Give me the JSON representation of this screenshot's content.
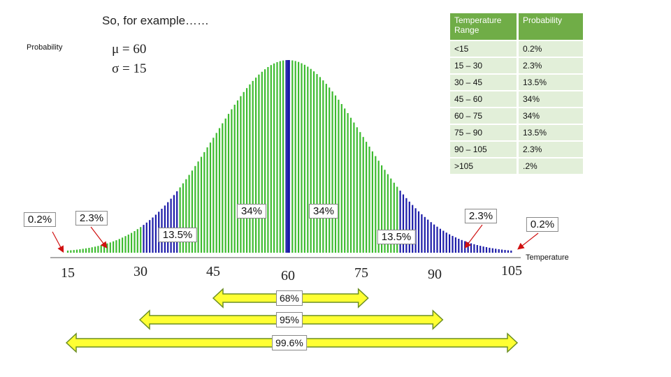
{
  "heading": "So, for example……",
  "y_label": "Probability",
  "x_label": "Temperature",
  "params": {
    "mu": "μ = 60",
    "sigma": "σ = 15"
  },
  "table": {
    "headers": [
      "Temperature Range",
      "Probability"
    ],
    "rows": [
      [
        "<15",
        "0.2%"
      ],
      [
        "15 – 30",
        "2.3%"
      ],
      [
        "30 – 45",
        "13.5%"
      ],
      [
        "45 – 60",
        "34%"
      ],
      [
        "60 – 75",
        "34%"
      ],
      [
        "75 – 90",
        "13.5%"
      ],
      [
        "90 – 105",
        "2.3%"
      ],
      [
        ">105",
        ".2%"
      ]
    ]
  },
  "region_labels": [
    "0.2%",
    "2.3%",
    "13.5%",
    "34%",
    "34%",
    "13.5%",
    "2.3%",
    "0.2%"
  ],
  "ranges": [
    {
      "label": "68%",
      "from": 45,
      "to": 75
    },
    {
      "label": "95%",
      "from": 30,
      "to": 90
    },
    {
      "label": "99.6%",
      "from": 15,
      "to": 105
    }
  ],
  "colors": {
    "green": "#3dbb2f",
    "blue": "#1c1ca8",
    "arrow_fill": "#ffff33",
    "arrow_stroke": "#6b8e23",
    "pointer": "#d01010"
  },
  "chart_data": {
    "type": "bar",
    "distribution": "normal",
    "mean": 60,
    "sd": 15,
    "x_ticks": [
      15,
      30,
      45,
      60,
      75,
      90,
      105
    ],
    "xlim": [
      15,
      105
    ],
    "xlabel": "Temperature",
    "ylabel": "Probability",
    "band_colors": [
      "green",
      "green",
      "blue",
      "green",
      "green",
      "blue",
      "green",
      "blue",
      "green"
    ],
    "grid": false
  }
}
